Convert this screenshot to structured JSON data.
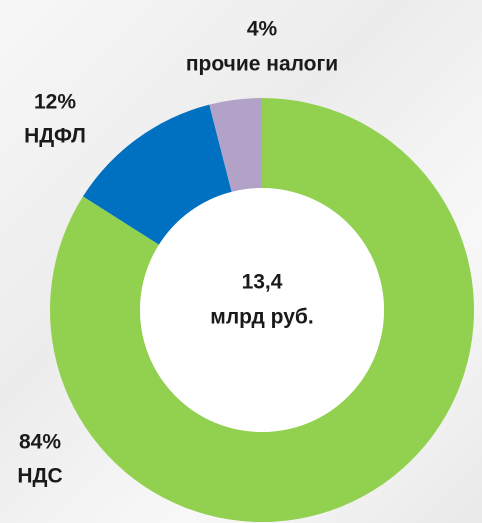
{
  "chart_data": {
    "type": "donut",
    "categories": [
      "НДС",
      "НДФЛ",
      "прочие налоги"
    ],
    "values": [
      84,
      12,
      4
    ],
    "value_labels": [
      "84%",
      "12%",
      "4%"
    ],
    "colors": [
      "#92d050",
      "#0070c0",
      "#b3a2c7"
    ],
    "center_text": [
      "13,4",
      "млрд руб."
    ]
  }
}
